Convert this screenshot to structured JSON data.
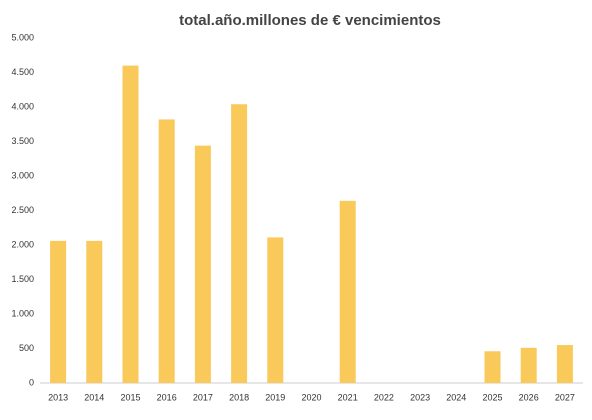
{
  "chart_data": {
    "type": "bar",
    "title": "total.año.millones de € vencimientos",
    "categories": [
      "2013",
      "2014",
      "2015",
      "2016",
      "2017",
      "2018",
      "2019",
      "2020",
      "2021",
      "2022",
      "2023",
      "2024",
      "2025",
      "2026",
      "2027"
    ],
    "values": [
      2060,
      2060,
      4600,
      3820,
      3440,
      4040,
      2110,
      0,
      2640,
      0,
      0,
      0,
      460,
      510,
      550
    ],
    "color": "#f9c95a",
    "ylim": [
      0,
      5000
    ],
    "yticks": [
      0,
      500,
      {
        "value": 1000,
        "label": "1.000"
      },
      {
        "value": 1500,
        "label": "1.500"
      },
      {
        "value": 2000,
        "label": "2.000"
      },
      {
        "value": 2500,
        "label": "2.500"
      },
      {
        "value": 3000,
        "label": "3.000"
      },
      {
        "value": 3500,
        "label": "3.500"
      },
      {
        "value": 4000,
        "label": "4.000"
      },
      {
        "value": 4500,
        "label": "4.500"
      },
      {
        "value": 5000,
        "label": "5.000"
      }
    ],
    "grid": false
  }
}
